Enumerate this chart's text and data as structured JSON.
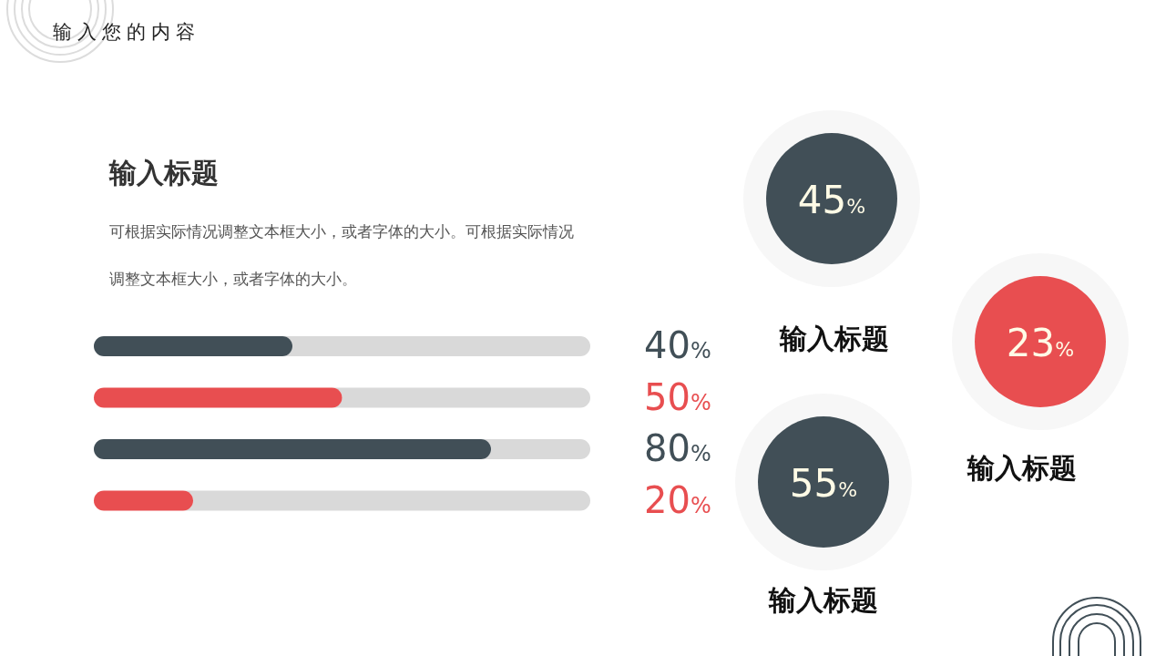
{
  "chart_data": [
    {
      "type": "other",
      "title": "输入您的内容"
    },
    {
      "type": "bar",
      "orientation": "horizontal",
      "title": "输入标题",
      "annotations": [
        "可根据实际情况调整文本框大小，或者字体的大小。可根据实际情况调整文本框大小，或者字体的大小。"
      ],
      "categories": [
        null,
        null,
        null,
        null
      ],
      "values": [
        40,
        50,
        80,
        20
      ],
      "colors": [
        "#414f57",
        "#e84e50",
        "#414f57",
        "#e84e50"
      ],
      "value_labels": [
        "40%",
        "50%",
        "80%",
        "20%"
      ],
      "xlim": [
        0,
        100
      ]
    },
    {
      "type": "other",
      "categories": [
        "输入标题",
        "输入标题",
        "输入标题"
      ],
      "values": [
        45,
        23,
        55
      ],
      "value_labels": [
        "45%",
        "23%",
        "55%"
      ],
      "colors": [
        "#414f57",
        "#e84e50",
        "#414f57"
      ]
    }
  ]
}
